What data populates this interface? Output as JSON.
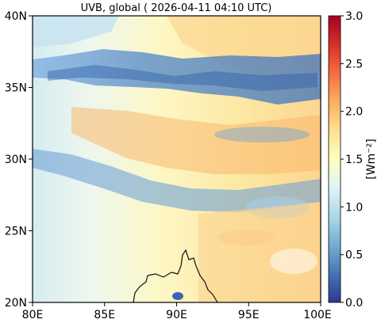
{
  "title": "UVB, global ( 2026-04-11 04:10 UTC)",
  "map": {
    "x_ticks": [
      "80E",
      "85E",
      "90E",
      "95E",
      "100E"
    ],
    "y_ticks": [
      "20N",
      "25N",
      "30N",
      "35N",
      "40N"
    ],
    "lon_range": [
      80,
      100
    ],
    "lat_range": [
      20,
      40
    ]
  },
  "colorbar": {
    "label": "[Wm⁻²]",
    "ticks": [
      "0.0",
      "0.5",
      "1.0",
      "1.5",
      "2.0",
      "2.5",
      "3.0"
    ],
    "range": [
      0,
      3
    ],
    "colormap": "RdYlBu_r",
    "colors": [
      "#313695",
      "#4575b4",
      "#74add1",
      "#abd9e9",
      "#e0f3f8",
      "#ffffbf",
      "#fee090",
      "#fdae61",
      "#f46d43",
      "#d73027",
      "#a50026"
    ]
  }
}
